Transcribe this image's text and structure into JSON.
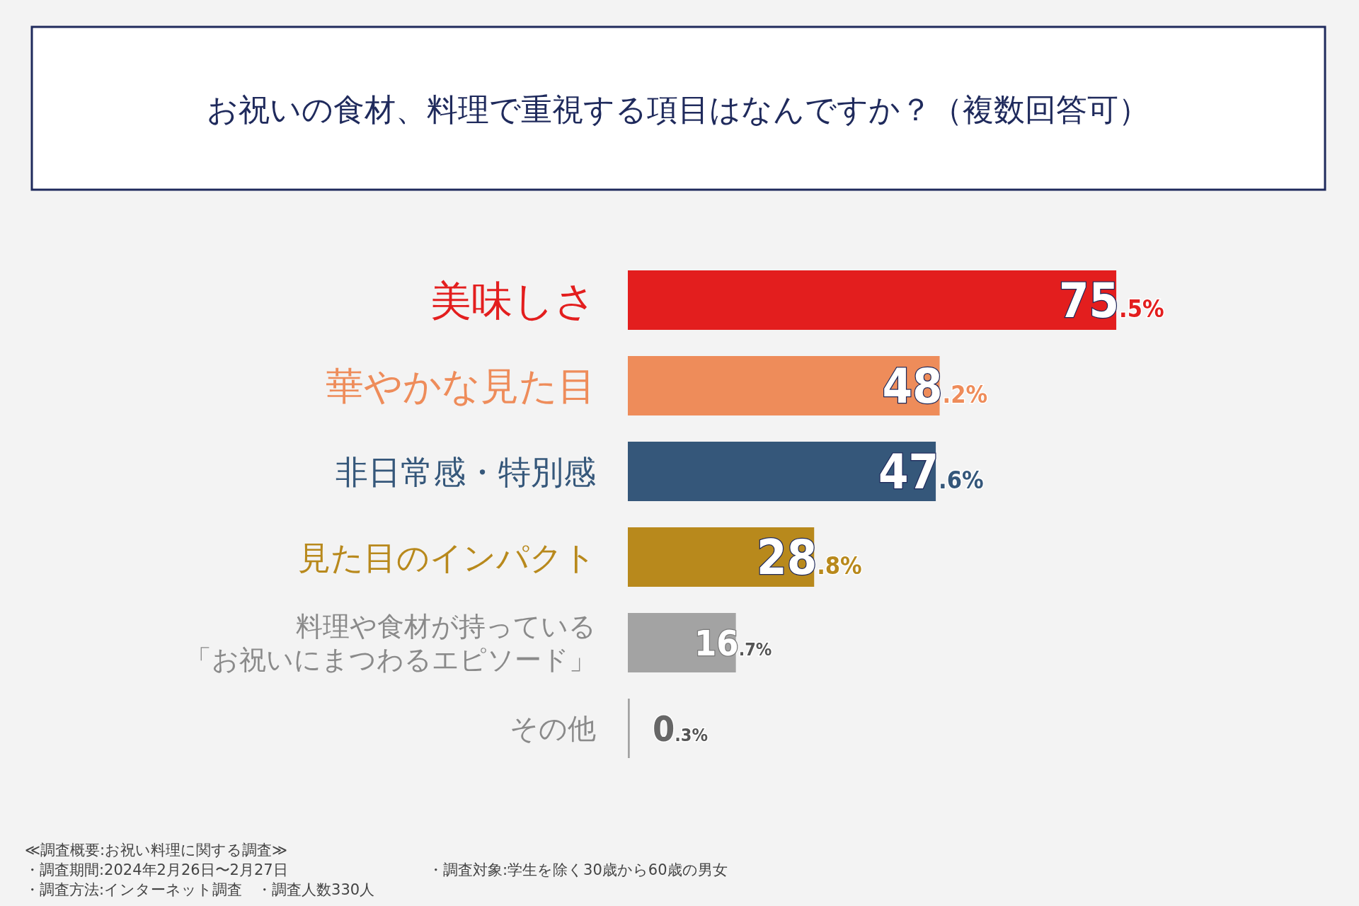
{
  "chart_data": {
    "type": "bar",
    "orientation": "horizontal",
    "title": "お祝いの食材、料理で重視する項目はなんですか？（複数回答可）",
    "categories": [
      "美味しさ",
      "華やかな見た目",
      "非日常感・特別感",
      "見た目のインパクト",
      "料理や食材が持っている「お祝いにまつわるエピソード」",
      "その他"
    ],
    "values": [
      75.5,
      48.2,
      47.6,
      28.8,
      16.7,
      0.3
    ],
    "colors": [
      "#e31e1e",
      "#ee8c5a",
      "#35577a",
      "#b8891c",
      "#a3a3a3",
      "#a3a3a3"
    ],
    "value_labels": [
      "75.5%",
      "48.2%",
      "47.6%",
      "28.8%",
      "16.7%",
      "0.3%"
    ],
    "annotations": [
      "≪調査概要:お祝い料理に関する調査≫",
      "・調査期間:2024年2月26日〜2月27日",
      "・調査方法:インターネット調査　・調査人数330人",
      "・調査対象:学生を除く30歳から60歳の男女"
    ]
  }
}
